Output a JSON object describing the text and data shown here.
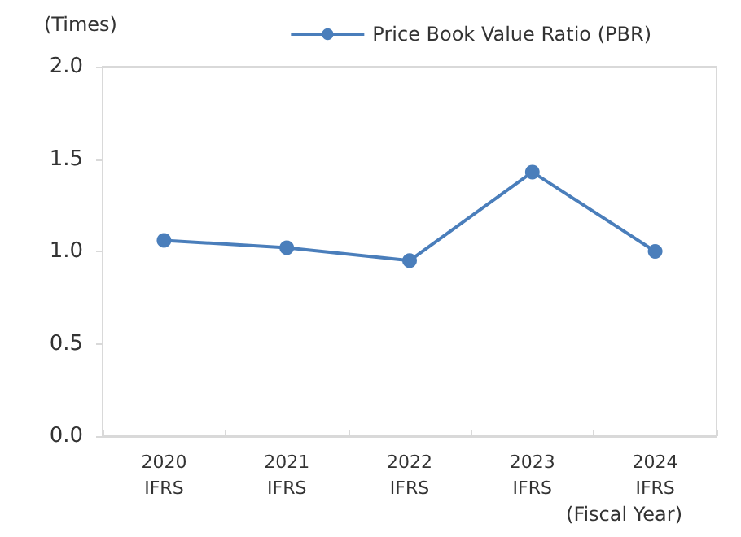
{
  "chart_data": {
    "type": "line",
    "ylabel": "(Times)",
    "xlabel": "(Fiscal Year)",
    "categories": [
      "2020\nIFRS",
      "2021\nIFRS",
      "2022\nIFRS",
      "2023\nIFRS",
      "2024\nIFRS"
    ],
    "series": [
      {
        "name": "Price Book Value Ratio (PBR)",
        "color": "#4a7ebb",
        "values": [
          1.06,
          1.02,
          0.95,
          1.43,
          1.0
        ]
      }
    ],
    "ylim": [
      0,
      2
    ],
    "yticks": [
      {
        "value": 0,
        "label": "0.0"
      },
      {
        "value": 0.5,
        "label": "0.5"
      },
      {
        "value": 1,
        "label": "1.0"
      },
      {
        "value": 1.5,
        "label": "1.5"
      },
      {
        "value": 2,
        "label": "2.0"
      }
    ],
    "grid": false,
    "legend": "top right",
    "marker": "circle",
    "line_style": "solid"
  }
}
